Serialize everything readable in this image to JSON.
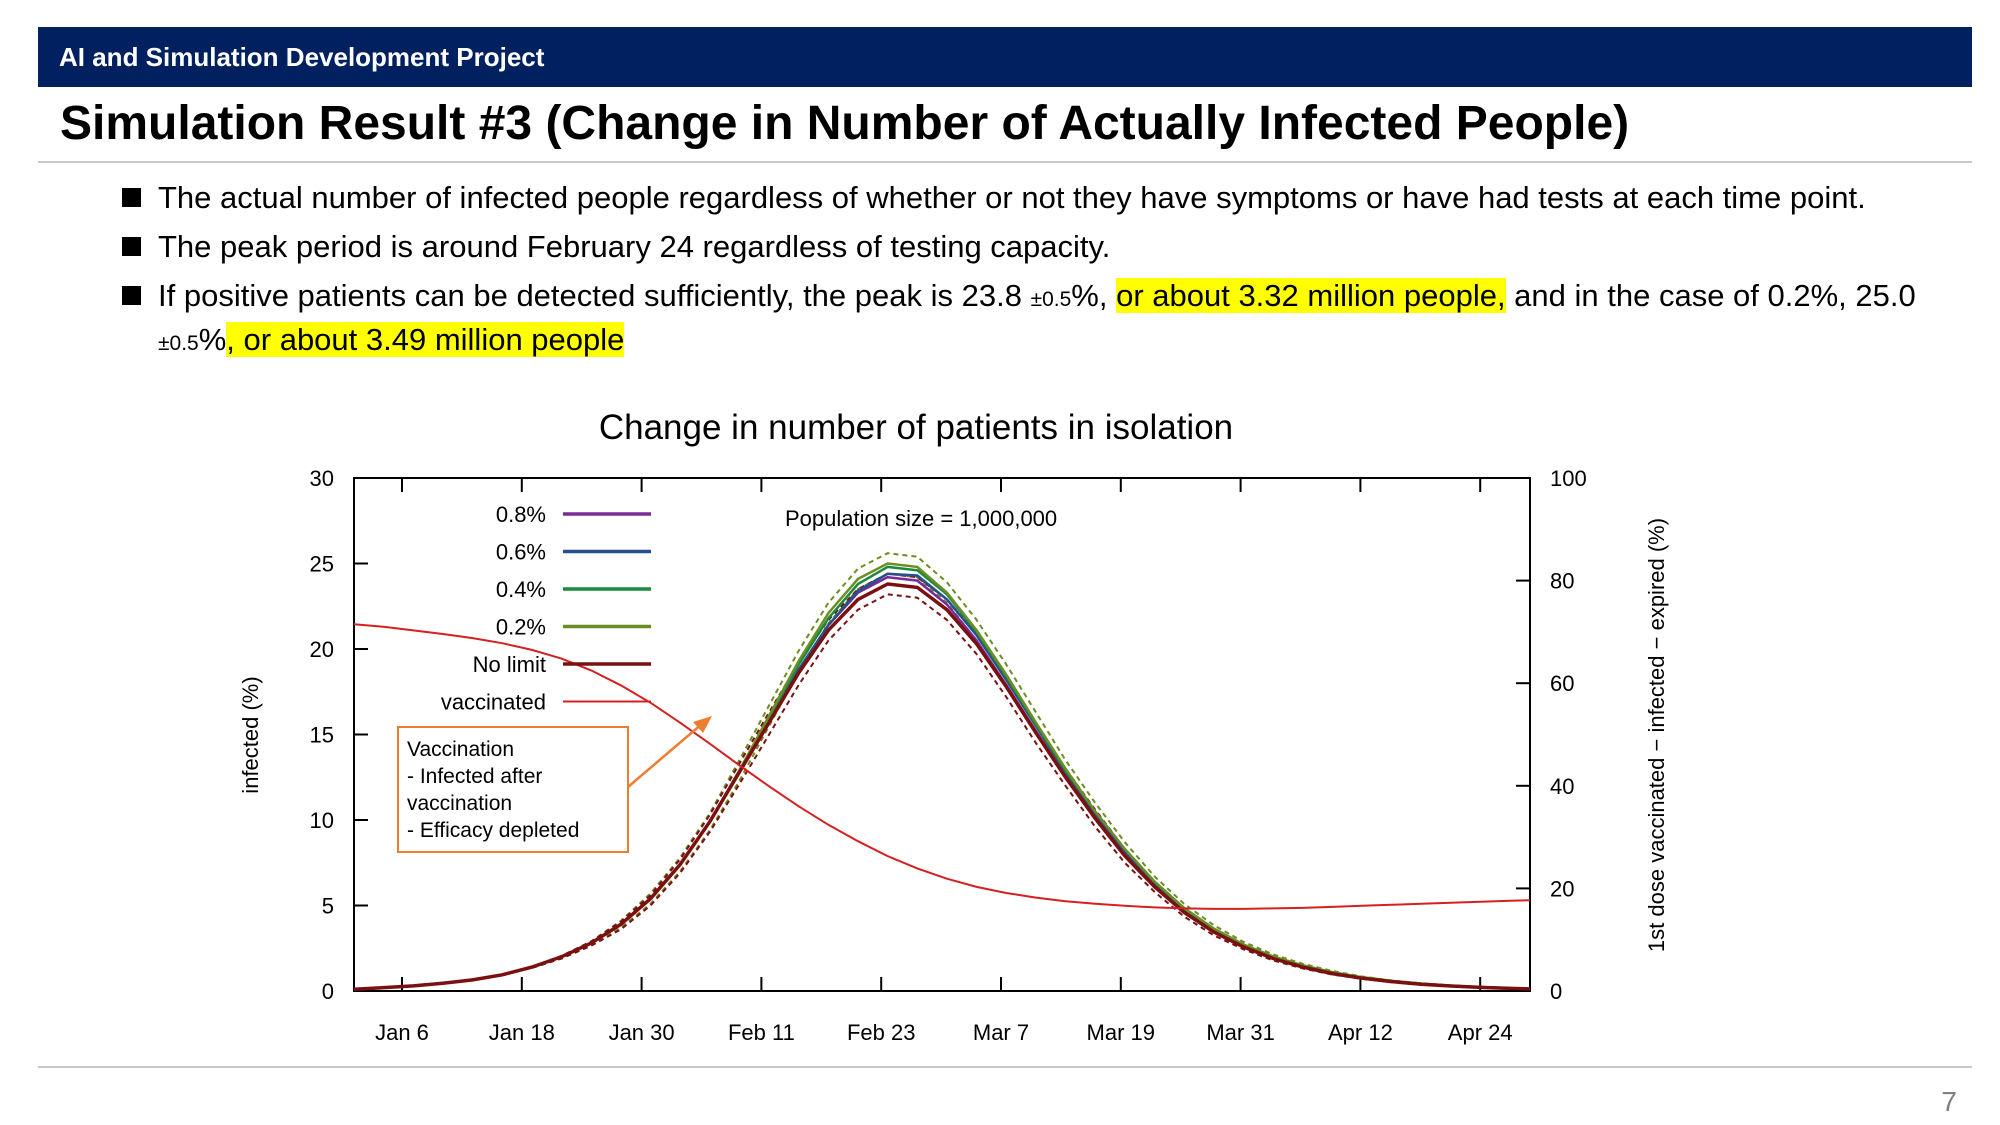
{
  "header": {
    "project": "AI and Simulation Development Project",
    "page_number": "7"
  },
  "slide": {
    "title": "Simulation Result #3 (Change in Number of Actually Infected People)",
    "bullets": [
      {
        "text": "The actual number of infected people regardless of whether or not they have symptoms or have had tests at each time point."
      },
      {
        "text": "The peak period is around February 24 regardless of testing capacity."
      },
      {
        "p1": "If positive patients can be detected sufficiently, the peak is 23.8 ",
        "pm1": "±0.5",
        "p2": "%, ",
        "h1": "or about 3.32 million people,",
        "p3": " and in the case of 0.2%, 25.0 ",
        "pm2": "±0.5",
        "p4": "%",
        "h2": ", or about 3.49 million people"
      }
    ]
  },
  "chart_data": {
    "type": "line",
    "title": "Change in number of patients in isolation",
    "annotation_population": "Population size = 1,000,000",
    "annotation_box": [
      "Vaccination",
      "- Infected after",
      "vaccination",
      "- Efficacy depleted"
    ],
    "ylabel": "infected (%)",
    "y2label": "1st dose vaccinated − infected − expired (%)",
    "ylim": [
      0,
      30
    ],
    "y2lim": [
      0,
      100
    ],
    "yticks": [
      0,
      5,
      10,
      15,
      20,
      25,
      30
    ],
    "y2ticks": [
      0,
      20,
      40,
      60,
      80,
      100
    ],
    "xticks": [
      "Jan 6",
      "Jan 18",
      "Jan 30",
      "Feb 11",
      "Feb 23",
      "Mar 7",
      "Mar 19",
      "Mar 31",
      "Apr 12",
      "Apr 24"
    ],
    "grid": false,
    "legend_position": "top-left",
    "colors": {
      "0.8%": "#7b2a9c",
      "0.6%": "#24518c",
      "0.4%": "#1c8a3c",
      "0.2%": "#6b8e23",
      "No limit": "#7a1010",
      "vaccinated": "#d42020",
      "annotation": "#ed7d31"
    },
    "x_days": [
      0,
      3,
      6,
      9,
      12,
      15,
      18,
      21,
      24,
      27,
      30,
      33,
      36,
      39,
      42,
      45,
      48,
      51,
      54,
      57,
      60,
      63,
      66,
      69,
      72,
      75,
      78,
      81,
      84,
      87,
      90,
      93,
      96,
      99,
      102,
      105,
      108,
      111,
      114,
      117,
      119
    ],
    "series": [
      {
        "name": "0.8%",
        "axis": "left",
        "values": [
          0.1,
          0.2,
          0.3,
          0.45,
          0.65,
          0.95,
          1.4,
          2.0,
          2.8,
          3.9,
          5.4,
          7.4,
          9.9,
          12.8,
          15.8,
          18.8,
          21.4,
          23.3,
          24.2,
          24.0,
          22.6,
          20.5,
          17.9,
          15.2,
          12.6,
          10.2,
          8.0,
          6.2,
          4.7,
          3.55,
          2.65,
          1.95,
          1.45,
          1.05,
          0.78,
          0.57,
          0.42,
          0.3,
          0.22,
          0.16,
          0.13
        ]
      },
      {
        "name": "0.6%",
        "axis": "left",
        "values": [
          0.1,
          0.2,
          0.3,
          0.45,
          0.65,
          0.95,
          1.4,
          2.0,
          2.8,
          3.9,
          5.4,
          7.4,
          9.9,
          12.8,
          15.8,
          18.8,
          21.4,
          23.4,
          24.4,
          24.3,
          22.9,
          20.8,
          18.2,
          15.5,
          12.8,
          10.4,
          8.2,
          6.3,
          4.8,
          3.6,
          2.7,
          2.0,
          1.48,
          1.08,
          0.79,
          0.58,
          0.42,
          0.31,
          0.22,
          0.16,
          0.13
        ]
      },
      {
        "name": "0.4%",
        "axis": "left",
        "values": [
          0.1,
          0.2,
          0.3,
          0.45,
          0.65,
          0.95,
          1.4,
          2.0,
          2.8,
          3.9,
          5.4,
          7.4,
          9.9,
          12.9,
          16.0,
          19.1,
          21.8,
          23.8,
          24.8,
          24.6,
          23.2,
          21.0,
          18.4,
          15.6,
          12.9,
          10.5,
          8.3,
          6.4,
          4.85,
          3.65,
          2.72,
          2.02,
          1.5,
          1.1,
          0.8,
          0.59,
          0.43,
          0.31,
          0.23,
          0.17,
          0.13
        ]
      },
      {
        "name": "0.2%",
        "axis": "left",
        "values": [
          0.1,
          0.2,
          0.3,
          0.45,
          0.65,
          0.95,
          1.4,
          2.0,
          2.8,
          3.9,
          5.4,
          7.4,
          9.9,
          12.9,
          16.1,
          19.3,
          22.1,
          24.1,
          25.0,
          24.8,
          23.3,
          21.1,
          18.5,
          15.7,
          13.0,
          10.5,
          8.3,
          6.4,
          4.85,
          3.65,
          2.72,
          2.02,
          1.5,
          1.1,
          0.8,
          0.59,
          0.43,
          0.31,
          0.23,
          0.17,
          0.13
        ]
      },
      {
        "name": "No limit",
        "axis": "left",
        "values": [
          0.1,
          0.2,
          0.3,
          0.45,
          0.65,
          0.95,
          1.4,
          2.0,
          2.8,
          3.9,
          5.4,
          7.4,
          9.9,
          12.8,
          15.7,
          18.6,
          21.1,
          22.9,
          23.8,
          23.6,
          22.3,
          20.3,
          17.8,
          15.1,
          12.5,
          10.1,
          7.9,
          6.1,
          4.6,
          3.45,
          2.58,
          1.9,
          1.4,
          1.02,
          0.75,
          0.55,
          0.4,
          0.29,
          0.21,
          0.15,
          0.12
        ]
      },
      {
        "name": "vaccinated",
        "axis": "right",
        "values": [
          71.5,
          71.0,
          70.3,
          69.6,
          68.8,
          67.8,
          66.5,
          64.8,
          62.5,
          59.6,
          56.2,
          52.3,
          48.2,
          44.0,
          39.9,
          36.0,
          32.4,
          29.2,
          26.3,
          23.9,
          21.9,
          20.3,
          19.1,
          18.2,
          17.5,
          17.0,
          16.6,
          16.3,
          16.1,
          16.0,
          16.0,
          16.1,
          16.2,
          16.4,
          16.6,
          16.8,
          17.0,
          17.2,
          17.4,
          17.6,
          17.7
        ]
      }
    ],
    "uncertainty": {
      "0.2%": {
        "upper": [
          0.1,
          0.2,
          0.3,
          0.45,
          0.65,
          0.95,
          1.4,
          2.0,
          2.9,
          4.1,
          5.7,
          7.8,
          10.4,
          13.5,
          16.7,
          19.9,
          22.7,
          24.7,
          25.6,
          25.4,
          23.9,
          21.7,
          19.1,
          16.3,
          13.5,
          11.0,
          8.7,
          6.7,
          5.1,
          3.85,
          2.88,
          2.14,
          1.59,
          1.17,
          0.85,
          0.62,
          0.45,
          0.33,
          0.24,
          0.18,
          0.14
        ],
        "lower": [
          0.1,
          0.2,
          0.3,
          0.45,
          0.65,
          0.95,
          1.35,
          1.9,
          2.65,
          3.7,
          5.1,
          7.0,
          9.4,
          12.3,
          15.5,
          18.7,
          21.5,
          23.5,
          24.4,
          24.2,
          22.7,
          20.5,
          17.9,
          15.1,
          12.5,
          10.0,
          7.9,
          6.1,
          4.6,
          3.45,
          2.56,
          1.9,
          1.41,
          1.03,
          0.75,
          0.56,
          0.41,
          0.29,
          0.22,
          0.16,
          0.12
        ]
      },
      "No limit": {
        "upper": [
          0.1,
          0.2,
          0.3,
          0.45,
          0.65,
          0.95,
          1.4,
          2.05,
          2.9,
          4.05,
          5.6,
          7.7,
          10.3,
          13.3,
          16.3,
          19.2,
          21.7,
          23.5,
          24.4,
          24.2,
          22.9,
          20.9,
          18.4,
          15.7,
          13.0,
          10.6,
          8.3,
          6.4,
          4.85,
          3.65,
          2.72,
          2.01,
          1.48,
          1.08,
          0.79,
          0.58,
          0.42,
          0.31,
          0.22,
          0.16,
          0.13
        ],
        "lower": [
          0.1,
          0.2,
          0.3,
          0.45,
          0.65,
          0.95,
          1.35,
          1.9,
          2.65,
          3.6,
          5.0,
          6.9,
          9.3,
          12.1,
          15.0,
          17.9,
          20.5,
          22.3,
          23.2,
          23.0,
          21.7,
          19.7,
          17.2,
          14.5,
          12.0,
          9.6,
          7.5,
          5.8,
          4.35,
          3.25,
          2.44,
          1.79,
          1.32,
          0.96,
          0.71,
          0.52,
          0.38,
          0.27,
          0.2,
          0.14,
          0.11
        ]
      }
    }
  }
}
